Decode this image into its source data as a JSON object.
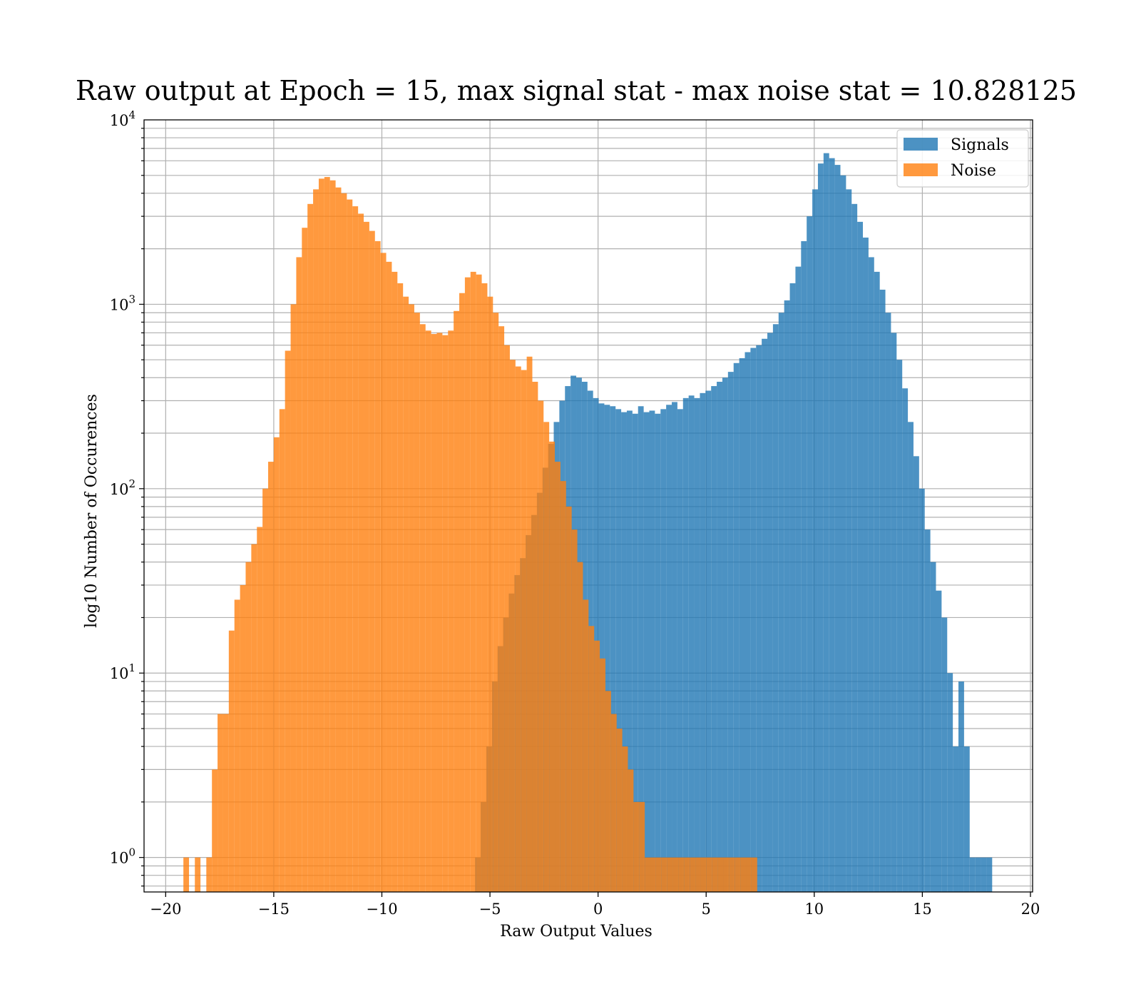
{
  "chart_data": {
    "type": "bar",
    "title": "Raw output at Epoch = 15, max signal stat - max noise stat = 10.828125",
    "xlabel": "Raw Output Values",
    "ylabel": "log10 Number of Occurences",
    "xlim": [
      -21,
      20.1
    ],
    "ylim": [
      0.65,
      10000
    ],
    "yscale": "log",
    "grid": true,
    "legend_position": "top-right",
    "x_ticks": [
      -20,
      -15,
      -10,
      -5,
      0,
      5,
      10,
      15,
      20
    ],
    "x_tick_labels": [
      "−20",
      "−15",
      "−10",
      "−5",
      "0",
      "5",
      "10",
      "15",
      "20"
    ],
    "y_ticks": [
      {
        "value": 1,
        "base": "10",
        "exp": "0"
      },
      {
        "value": 10,
        "base": "10",
        "exp": "1"
      },
      {
        "value": 100,
        "base": "10",
        "exp": "2"
      },
      {
        "value": 1000,
        "base": "10",
        "exp": "3"
      },
      {
        "value": 10000,
        "base": "10",
        "exp": "4"
      }
    ],
    "series": [
      {
        "name": "Signals",
        "color": "#1f77b4",
        "alpha": 0.8,
        "bin_width": 0.26,
        "x": [
          -5.56,
          -5.3,
          -5.04,
          -4.78,
          -4.52,
          -4.26,
          -4.0,
          -3.74,
          -3.48,
          -3.22,
          -2.96,
          -2.7,
          -2.44,
          -2.18,
          -1.92,
          -1.66,
          -1.4,
          -1.14,
          -0.88,
          -0.62,
          -0.36,
          -0.1,
          0.16,
          0.42,
          0.68,
          0.94,
          1.2,
          1.46,
          1.72,
          1.98,
          2.24,
          2.5,
          2.76,
          3.02,
          3.28,
          3.54,
          3.8,
          4.06,
          4.32,
          4.58,
          4.84,
          5.1,
          5.36,
          5.62,
          5.88,
          6.14,
          6.4,
          6.66,
          6.92,
          7.18,
          7.44,
          7.7,
          7.96,
          8.22,
          8.48,
          8.74,
          9.0,
          9.26,
          9.52,
          9.78,
          10.04,
          10.3,
          10.56,
          10.82,
          11.08,
          11.34,
          11.6,
          11.86,
          12.12,
          12.38,
          12.64,
          12.9,
          13.16,
          13.42,
          13.68,
          13.94,
          14.2,
          14.46,
          14.72,
          14.98,
          15.24,
          15.5,
          15.76,
          16.02,
          16.28,
          16.54,
          16.8,
          17.06,
          17.32,
          17.58,
          17.84,
          18.1
        ],
        "values": [
          1,
          2,
          4,
          9,
          14,
          20,
          27,
          34,
          42,
          56,
          72,
          95,
          130,
          175,
          230,
          300,
          360,
          410,
          400,
          380,
          340,
          310,
          290,
          285,
          280,
          270,
          260,
          265,
          255,
          280,
          260,
          265,
          255,
          270,
          285,
          295,
          270,
          310,
          320,
          310,
          330,
          340,
          360,
          380,
          400,
          430,
          480,
          510,
          550,
          580,
          600,
          650,
          700,
          780,
          900,
          1050,
          1300,
          1600,
          2200,
          3000,
          4200,
          5800,
          6600,
          6200,
          5700,
          5000,
          4200,
          3500,
          2800,
          2300,
          1800,
          1500,
          1200,
          900,
          700,
          500,
          350,
          230,
          150,
          100,
          60,
          40,
          28,
          20,
          10,
          4,
          9,
          4,
          1,
          1,
          1,
          1
        ]
      },
      {
        "name": "Noise",
        "color": "#ff7f0e",
        "alpha": 0.8,
        "bin_width": 0.26,
        "x": [
          -19.05,
          -18.52,
          -17.99,
          -17.73,
          -17.47,
          -17.21,
          -16.95,
          -16.69,
          -16.43,
          -16.17,
          -15.91,
          -15.65,
          -15.39,
          -15.13,
          -14.87,
          -14.61,
          -14.35,
          -14.09,
          -13.83,
          -13.57,
          -13.31,
          -13.05,
          -12.79,
          -12.53,
          -12.27,
          -12.01,
          -11.75,
          -11.49,
          -11.23,
          -10.97,
          -10.71,
          -10.45,
          -10.19,
          -9.93,
          -9.67,
          -9.41,
          -9.15,
          -8.89,
          -8.63,
          -8.37,
          -8.11,
          -7.85,
          -7.59,
          -7.33,
          -7.07,
          -6.81,
          -6.55,
          -6.29,
          -6.03,
          -5.77,
          -5.51,
          -5.25,
          -4.99,
          -4.73,
          -4.47,
          -4.21,
          -3.95,
          -3.69,
          -3.43,
          -3.17,
          -2.91,
          -2.65,
          -2.39,
          -2.13,
          -1.87,
          -1.61,
          -1.35,
          -1.09,
          -0.83,
          -0.57,
          -0.31,
          -0.05,
          0.21,
          0.47,
          0.73,
          0.99,
          1.25,
          1.51,
          1.77,
          2.03,
          2.29,
          2.55,
          2.81,
          3.07,
          3.33,
          3.59,
          3.85,
          4.11,
          4.37,
          4.63,
          4.89,
          5.15,
          5.41,
          5.67,
          5.93,
          6.19,
          6.45,
          6.71,
          6.97,
          7.23
        ],
        "values": [
          1,
          1,
          1,
          3,
          6,
          6,
          17,
          25,
          30,
          40,
          50,
          62,
          100,
          140,
          190,
          270,
          560,
          1000,
          1800,
          2600,
          3500,
          4200,
          4800,
          4900,
          4700,
          4300,
          4000,
          3700,
          3400,
          3100,
          2800,
          2500,
          2200,
          1900,
          1700,
          1500,
          1300,
          1100,
          1000,
          900,
          780,
          720,
          690,
          700,
          680,
          720,
          920,
          1150,
          1400,
          1500,
          1450,
          1300,
          1100,
          900,
          760,
          600,
          500,
          460,
          440,
          520,
          380,
          300,
          230,
          180,
          140,
          110,
          80,
          60,
          40,
          25,
          18,
          15,
          12,
          8,
          6,
          5,
          4,
          3,
          2,
          2,
          1,
          1,
          1,
          1,
          1,
          1,
          1,
          1,
          1,
          1,
          1,
          1,
          1,
          1,
          1,
          1,
          1,
          1,
          1,
          1
        ]
      }
    ]
  }
}
